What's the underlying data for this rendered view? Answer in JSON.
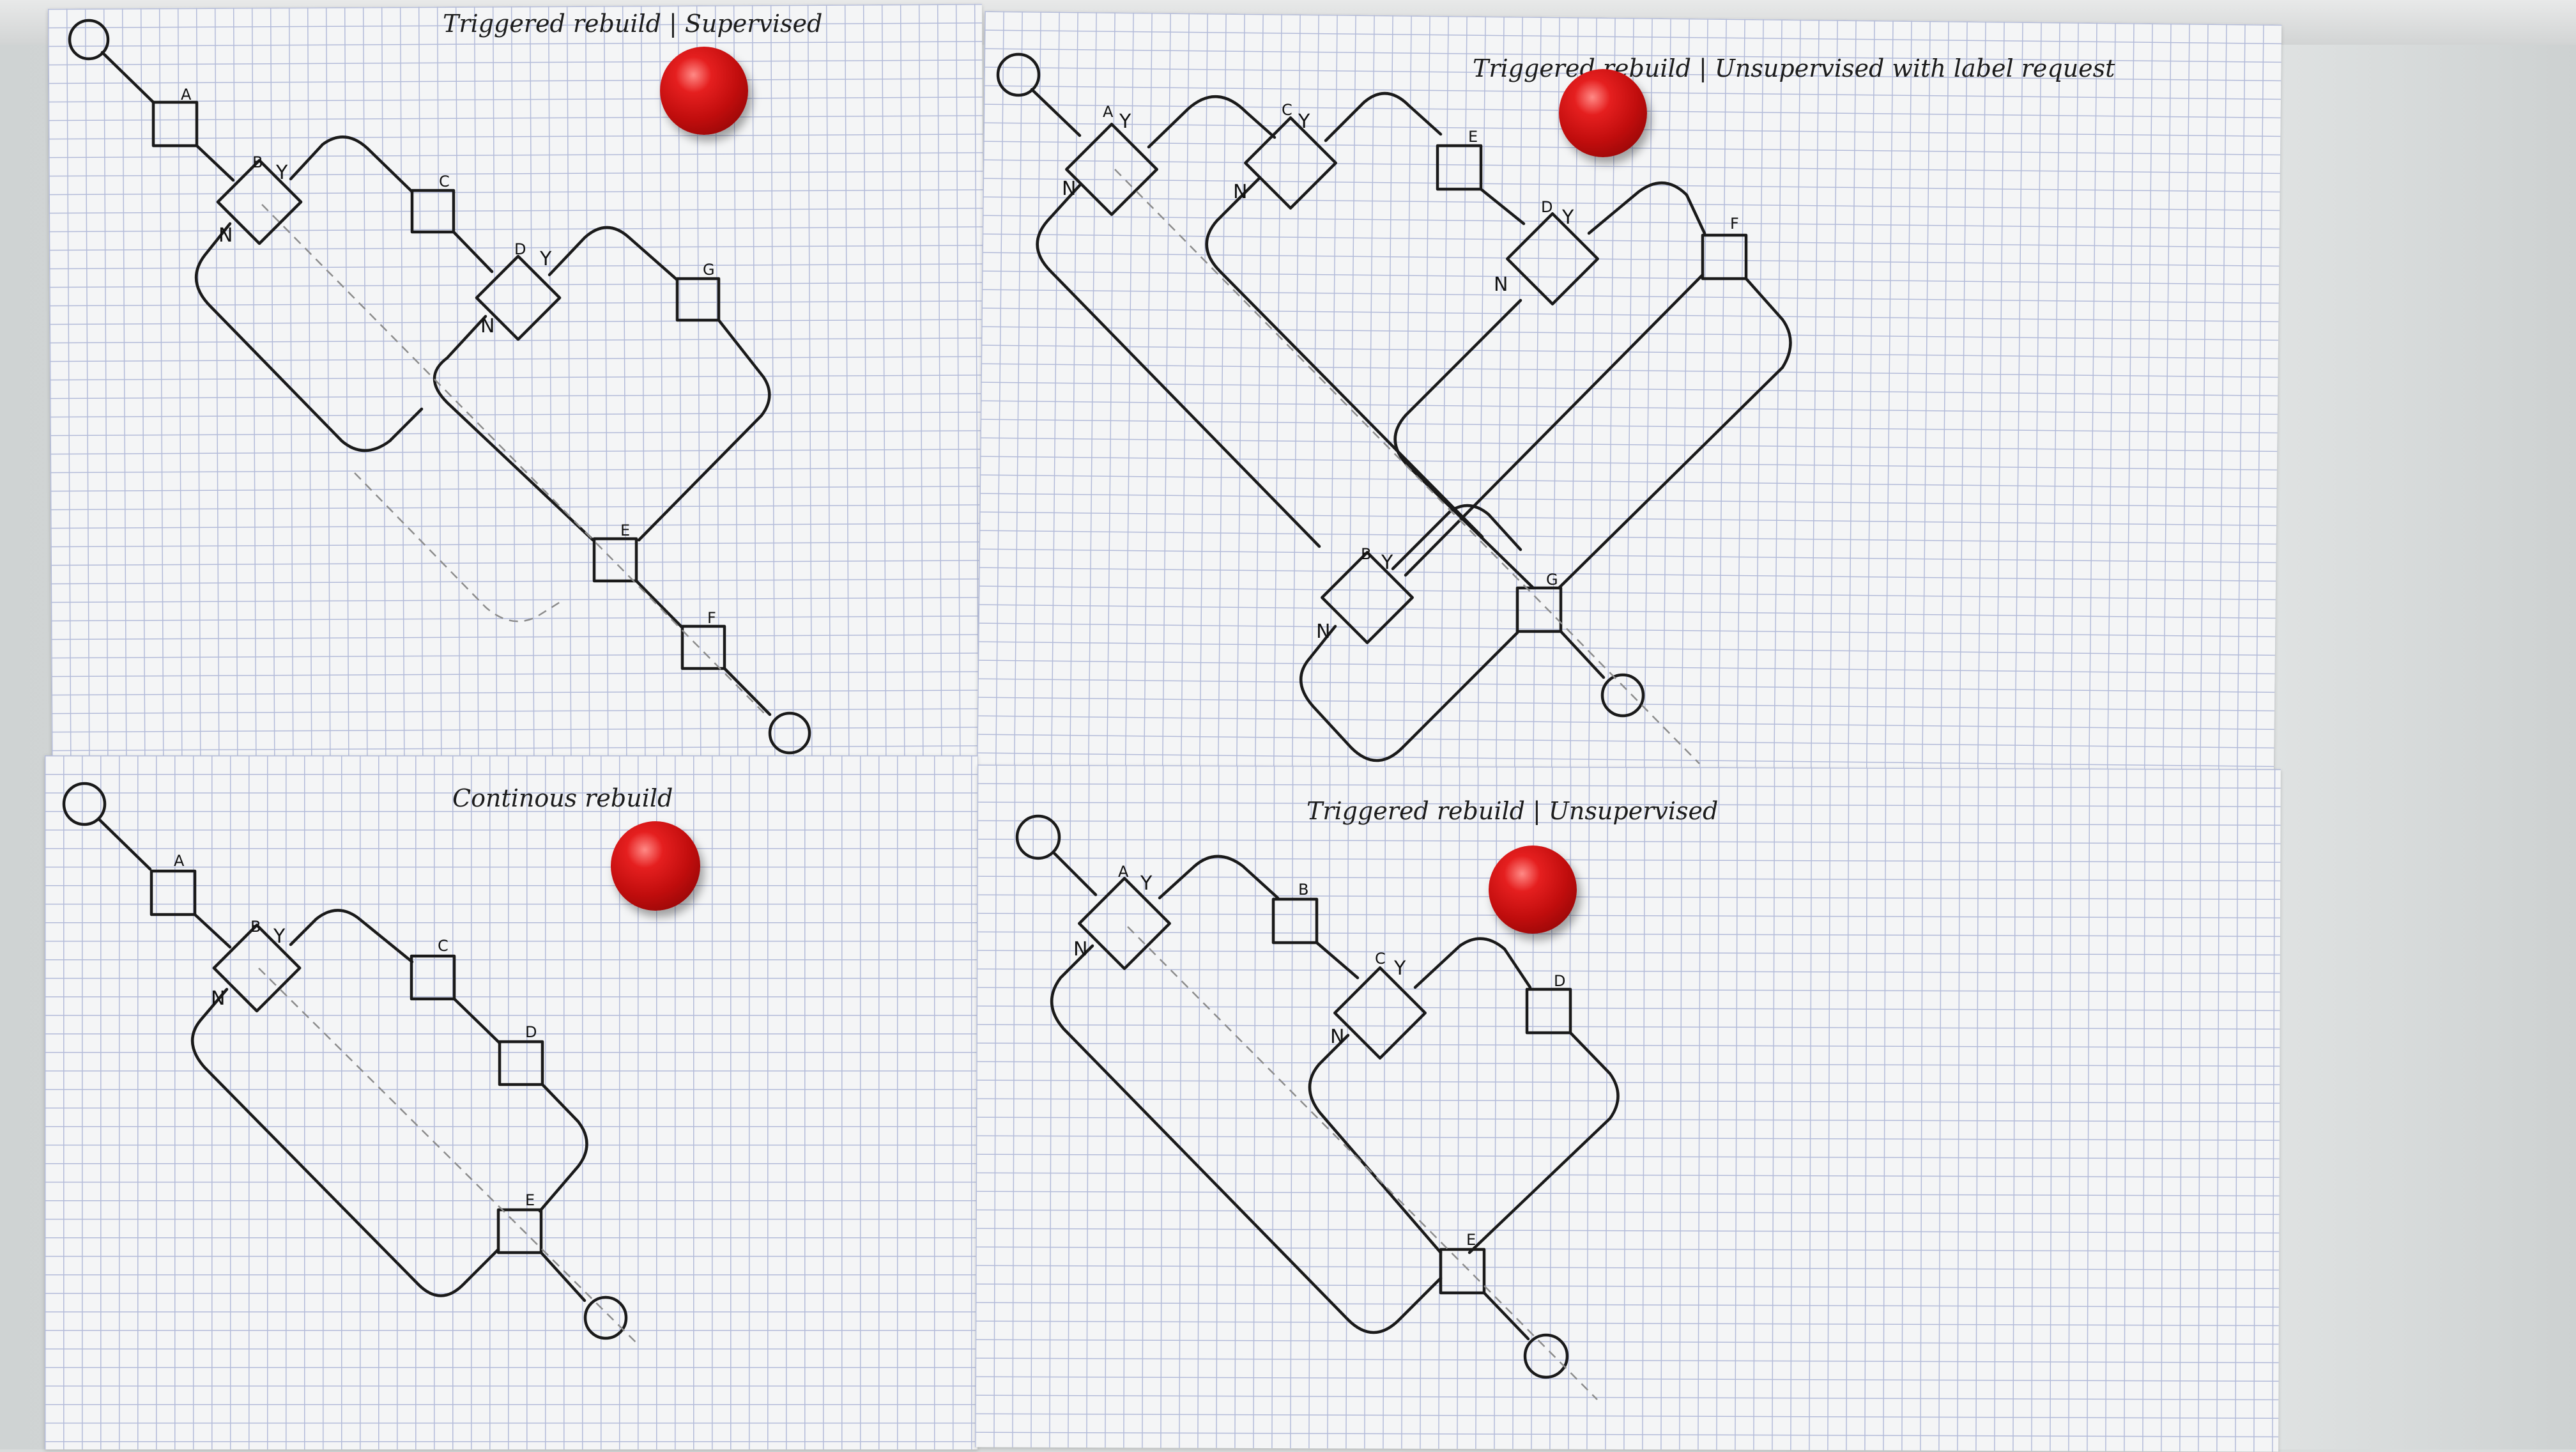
{
  "sheets": [
    {
      "id": "top-left",
      "title": "Triggered rebuild | Supervised",
      "nodes": [
        {
          "label": "A",
          "type": "task"
        },
        {
          "label": "B",
          "type": "decision",
          "yes": "Y",
          "no": "N"
        },
        {
          "label": "C",
          "type": "task"
        },
        {
          "label": "D",
          "type": "decision",
          "yes": "Y",
          "no": "N"
        },
        {
          "label": "G",
          "type": "task"
        },
        {
          "label": "E",
          "type": "task"
        },
        {
          "label": "F",
          "type": "task"
        }
      ]
    },
    {
      "id": "top-right",
      "title": "Triggered rebuild | Unsupervised with label request",
      "nodes": [
        {
          "label": "A",
          "type": "decision",
          "yes": "Y",
          "no": "N"
        },
        {
          "label": "C",
          "type": "decision",
          "yes": "Y",
          "no": "N"
        },
        {
          "label": "E",
          "type": "task"
        },
        {
          "label": "D",
          "type": "decision",
          "yes": "Y",
          "no": "N"
        },
        {
          "label": "F",
          "type": "task"
        },
        {
          "label": "B",
          "type": "decision",
          "yes": "Y",
          "no": "N"
        },
        {
          "label": "G",
          "type": "task"
        }
      ]
    },
    {
      "id": "bottom-left",
      "title": "Continous rebuild",
      "nodes": [
        {
          "label": "A",
          "type": "task"
        },
        {
          "label": "B",
          "type": "decision",
          "yes": "Y",
          "no": "N"
        },
        {
          "label": "C",
          "type": "task"
        },
        {
          "label": "D",
          "type": "task"
        },
        {
          "label": "E",
          "type": "task"
        }
      ]
    },
    {
      "id": "bottom-right",
      "title": "Triggered rebuild | Unsupervised",
      "nodes": [
        {
          "label": "A",
          "type": "decision",
          "yes": "Y",
          "no": "N"
        },
        {
          "label": "B",
          "type": "task"
        },
        {
          "label": "C",
          "type": "decision",
          "yes": "Y",
          "no": "N"
        },
        {
          "label": "D",
          "type": "task"
        },
        {
          "label": "E",
          "type": "task"
        }
      ]
    }
  ],
  "colors": {
    "ink": "#1a1a1a",
    "pencil": "#8c8c8c",
    "magnet": "#c81010",
    "grid": "#b3bbd9"
  }
}
